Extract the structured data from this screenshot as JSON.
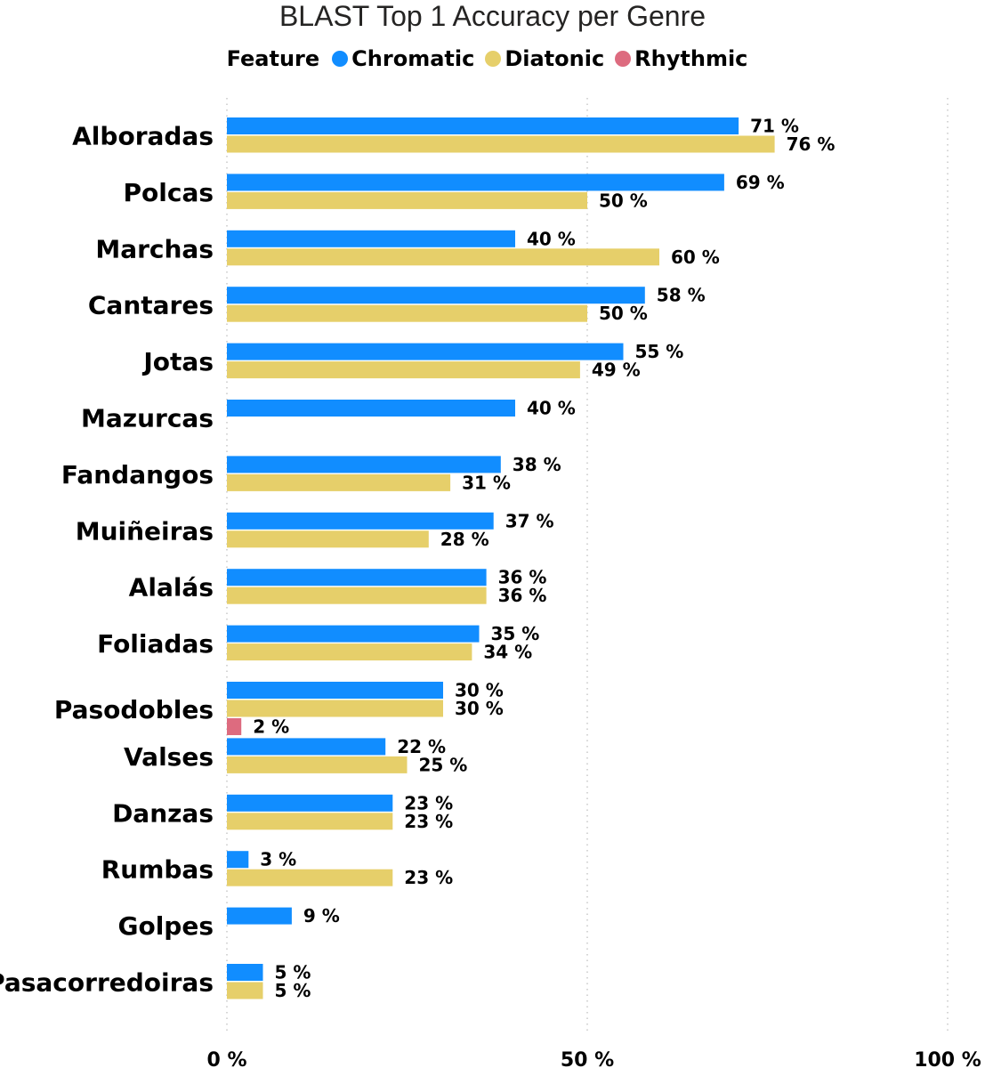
{
  "chart_data": {
    "type": "bar",
    "orientation": "horizontal",
    "title": "BLAST Top 1 Accuracy per Genre",
    "legend_title": "Feature",
    "legend_placement": "top-center",
    "categories": [
      "Alboradas",
      "Polcas",
      "Marchas",
      "Cantares",
      "Jotas",
      "Mazurcas",
      "Fandangos",
      "Muiñeiras",
      "Alalás",
      "Foliadas",
      "Pasodobles",
      "Valses",
      "Danzas",
      "Rumbas",
      "Golpes",
      "Pasacorredoiras"
    ],
    "series": [
      {
        "name": "Chromatic",
        "color": "#118DFF",
        "values": [
          71,
          69,
          40,
          58,
          55,
          40,
          38,
          37,
          36,
          35,
          30,
          22,
          23,
          3,
          9,
          5
        ]
      },
      {
        "name": "Diatonic",
        "color": "#E6CF6A",
        "values": [
          76,
          50,
          60,
          50,
          49,
          null,
          31,
          28,
          36,
          34,
          30,
          25,
          23,
          23,
          null,
          5
        ]
      },
      {
        "name": "Rhythmic",
        "color": "#DD6B7F",
        "values": [
          null,
          null,
          null,
          null,
          null,
          null,
          null,
          null,
          null,
          null,
          2,
          null,
          null,
          null,
          null,
          null
        ]
      }
    ],
    "value_suffix": " %",
    "xlim": [
      0,
      100
    ],
    "x_ticks": [
      0,
      50,
      100
    ],
    "x_tick_labels": [
      "0 %",
      "50 %",
      "100 %"
    ],
    "grid": "vertical dotted"
  }
}
